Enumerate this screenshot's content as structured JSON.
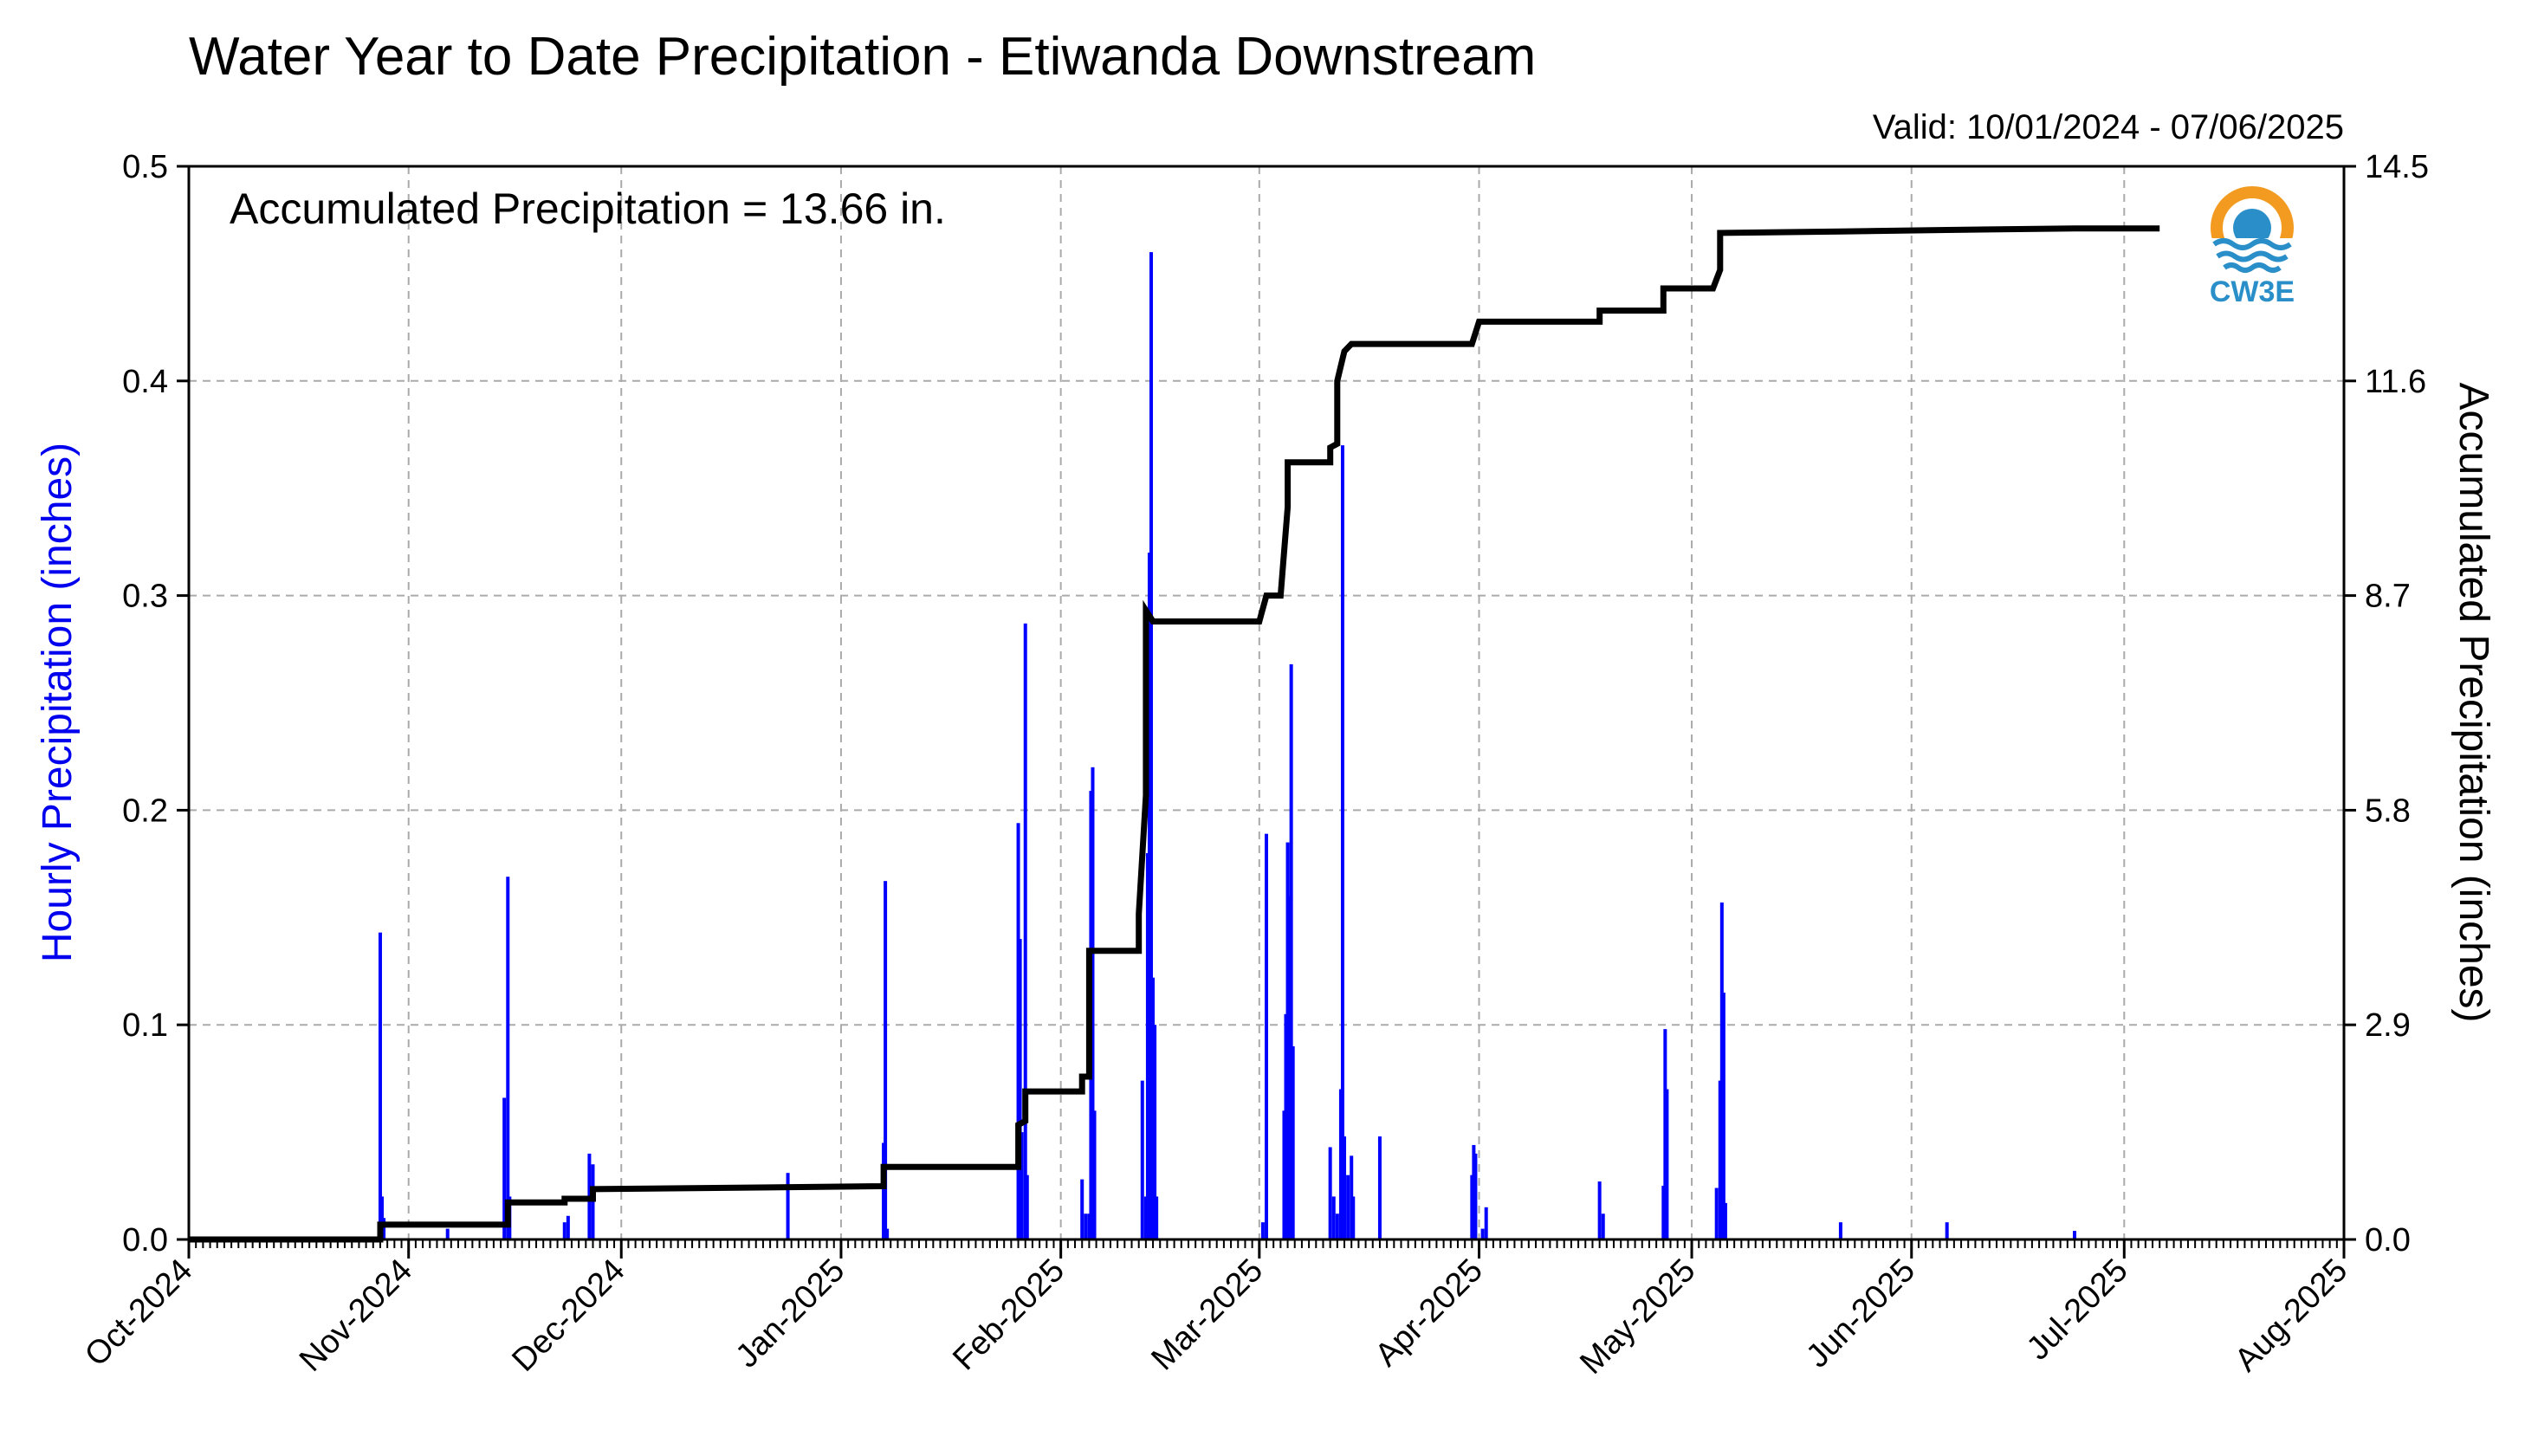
{
  "chart_data": {
    "type": "bar",
    "title": "Water Year to Date Precipitation - Etiwanda Downstream",
    "subtitle": "Valid: 10/01/2024 - 07/06/2025",
    "ylabel": "Hourly Precipitation (inches)",
    "y2label": "Accumulated Precipitation (inches)",
    "annotation": "Accumulated Precipitation = 13.66 in.",
    "logo_text": "CW3E",
    "xlim": [
      "2024-10-01",
      "2025-08-01"
    ],
    "ylim": [
      0,
      0.5
    ],
    "y2lim": [
      0,
      14.5
    ],
    "x_ticks": [
      "Oct-2024",
      "Nov-2024",
      "Dec-2024",
      "Jan-2025",
      "Feb-2025",
      "Mar-2025",
      "Apr-2025",
      "May-2025",
      "Jun-2025",
      "Jul-2025",
      "Aug-2025"
    ],
    "y_ticks": [
      "0.0",
      "0.1",
      "0.2",
      "0.3",
      "0.4",
      "0.5"
    ],
    "y2_ticks": [
      "0.0",
      "2.9",
      "5.8",
      "8.7",
      "11.6",
      "14.5"
    ],
    "grid": true,
    "colors": {
      "hourly": "#0000ff",
      "accumulated": "#000000",
      "grid": "#aaaaaa",
      "left_axis_label": "#0000ee"
    },
    "series": [
      {
        "name": "Hourly Precipitation",
        "kind": "bar",
        "points": [
          [
            "2024-10-28T00",
            0.143
          ],
          [
            "2024-10-28T06",
            0.02
          ],
          [
            "2024-10-28T12",
            0.01
          ],
          [
            "2024-11-06T12",
            0.005
          ],
          [
            "2024-11-14T12",
            0.066
          ],
          [
            "2024-11-15T00",
            0.169
          ],
          [
            "2024-11-15T06",
            0.02
          ],
          [
            "2024-11-23T00",
            0.008
          ],
          [
            "2024-11-23T12",
            0.011
          ],
          [
            "2024-11-26T12",
            0.04
          ],
          [
            "2024-11-27T00",
            0.035
          ],
          [
            "2024-12-24T12",
            0.031
          ],
          [
            "2025-01-07T00",
            0.045
          ],
          [
            "2025-01-07T06",
            0.167
          ],
          [
            "2025-01-07T12",
            0.005
          ],
          [
            "2025-01-26T00",
            0.194
          ],
          [
            "2025-01-26T06",
            0.14
          ],
          [
            "2025-01-26T12",
            0.05
          ],
          [
            "2025-01-27T00",
            0.287
          ],
          [
            "2025-01-27T06",
            0.03
          ],
          [
            "2025-02-04T00",
            0.028
          ],
          [
            "2025-02-04T12",
            0.012
          ],
          [
            "2025-02-05T00",
            0.012
          ],
          [
            "2025-02-05T06",
            0.209
          ],
          [
            "2025-02-05T12",
            0.22
          ],
          [
            "2025-02-05T18",
            0.06
          ],
          [
            "2025-02-12T12",
            0.074
          ],
          [
            "2025-02-13T00",
            0.02
          ],
          [
            "2025-02-13T06",
            0.18
          ],
          [
            "2025-02-13T12",
            0.32
          ],
          [
            "2025-02-13T18",
            0.46
          ],
          [
            "2025-02-14T00",
            0.122
          ],
          [
            "2025-02-14T06",
            0.1
          ],
          [
            "2025-02-14T12",
            0.02
          ],
          [
            "2025-03-01T12",
            0.008
          ],
          [
            "2025-03-02T00",
            0.189
          ],
          [
            "2025-03-04T12",
            0.06
          ],
          [
            "2025-03-04T18",
            0.105
          ],
          [
            "2025-03-05T00",
            0.185
          ],
          [
            "2025-03-05T06",
            0.16
          ],
          [
            "2025-03-05T12",
            0.268
          ],
          [
            "2025-03-05T18",
            0.09
          ],
          [
            "2025-03-11T00",
            0.043
          ],
          [
            "2025-03-11T12",
            0.02
          ],
          [
            "2025-03-12T00",
            0.012
          ],
          [
            "2025-03-12T12",
            0.07
          ],
          [
            "2025-03-12T18",
            0.37
          ],
          [
            "2025-03-13T00",
            0.048
          ],
          [
            "2025-03-13T12",
            0.03
          ],
          [
            "2025-03-14T00",
            0.039
          ],
          [
            "2025-03-14T06",
            0.02
          ],
          [
            "2025-03-18T00",
            0.048
          ],
          [
            "2025-03-31T00",
            0.03
          ],
          [
            "2025-03-31T06",
            0.044
          ],
          [
            "2025-03-31T12",
            0.04
          ],
          [
            "2025-04-01T12",
            0.005
          ],
          [
            "2025-04-02T00",
            0.015
          ],
          [
            "2025-04-18T00",
            0.027
          ],
          [
            "2025-04-18T12",
            0.012
          ],
          [
            "2025-04-27T00",
            0.025
          ],
          [
            "2025-04-27T06",
            0.098
          ],
          [
            "2025-04-27T12",
            0.07
          ],
          [
            "2025-05-04T12",
            0.024
          ],
          [
            "2025-05-05T00",
            0.074
          ],
          [
            "2025-05-05T06",
            0.157
          ],
          [
            "2025-05-05T12",
            0.115
          ],
          [
            "2025-05-05T18",
            0.017
          ],
          [
            "2025-05-22T00",
            0.008
          ],
          [
            "2025-06-06T00",
            0.008
          ],
          [
            "2025-06-24T00",
            0.004
          ]
        ]
      },
      {
        "name": "Accumulated Precipitation",
        "kind": "step",
        "points": [
          [
            "2024-10-01",
            0.0
          ],
          [
            "2024-10-28",
            0.0
          ],
          [
            "2024-10-28",
            0.2
          ],
          [
            "2024-11-15",
            0.2
          ],
          [
            "2024-11-15",
            0.5
          ],
          [
            "2024-11-23",
            0.5
          ],
          [
            "2024-11-23",
            0.55
          ],
          [
            "2024-11-27",
            0.55
          ],
          [
            "2024-11-27",
            0.68
          ],
          [
            "2025-01-07",
            0.72
          ],
          [
            "2025-01-07",
            0.98
          ],
          [
            "2025-01-26",
            0.98
          ],
          [
            "2025-01-26",
            1.55
          ],
          [
            "2025-01-27",
            1.6
          ],
          [
            "2025-01-27",
            2.0
          ],
          [
            "2025-02-04",
            2.0
          ],
          [
            "2025-02-04",
            2.2
          ],
          [
            "2025-02-05",
            2.2
          ],
          [
            "2025-02-05",
            3.9
          ],
          [
            "2025-02-12",
            3.9
          ],
          [
            "2025-02-12",
            4.4
          ],
          [
            "2025-02-13",
            6.0
          ],
          [
            "2025-02-13",
            8.5
          ],
          [
            "2025-02-14",
            8.35
          ],
          [
            "2025-03-01",
            8.35
          ],
          [
            "2025-03-02",
            8.7
          ],
          [
            "2025-03-04",
            8.7
          ],
          [
            "2025-03-05",
            9.9
          ],
          [
            "2025-03-05",
            10.5
          ],
          [
            "2025-03-11",
            10.5
          ],
          [
            "2025-03-11",
            10.7
          ],
          [
            "2025-03-12",
            10.75
          ],
          [
            "2025-03-12",
            11.6
          ],
          [
            "2025-03-13",
            12.0
          ],
          [
            "2025-03-14",
            12.1
          ],
          [
            "2025-03-31",
            12.1
          ],
          [
            "2025-04-01",
            12.4
          ],
          [
            "2025-04-18",
            12.4
          ],
          [
            "2025-04-18",
            12.55
          ],
          [
            "2025-04-27",
            12.55
          ],
          [
            "2025-04-27",
            12.85
          ],
          [
            "2025-05-04",
            12.85
          ],
          [
            "2025-05-05",
            13.1
          ],
          [
            "2025-05-05",
            13.6
          ],
          [
            "2025-05-22",
            13.62
          ],
          [
            "2025-06-06",
            13.64
          ],
          [
            "2025-06-24",
            13.66
          ],
          [
            "2025-07-06",
            13.66
          ]
        ]
      }
    ]
  }
}
